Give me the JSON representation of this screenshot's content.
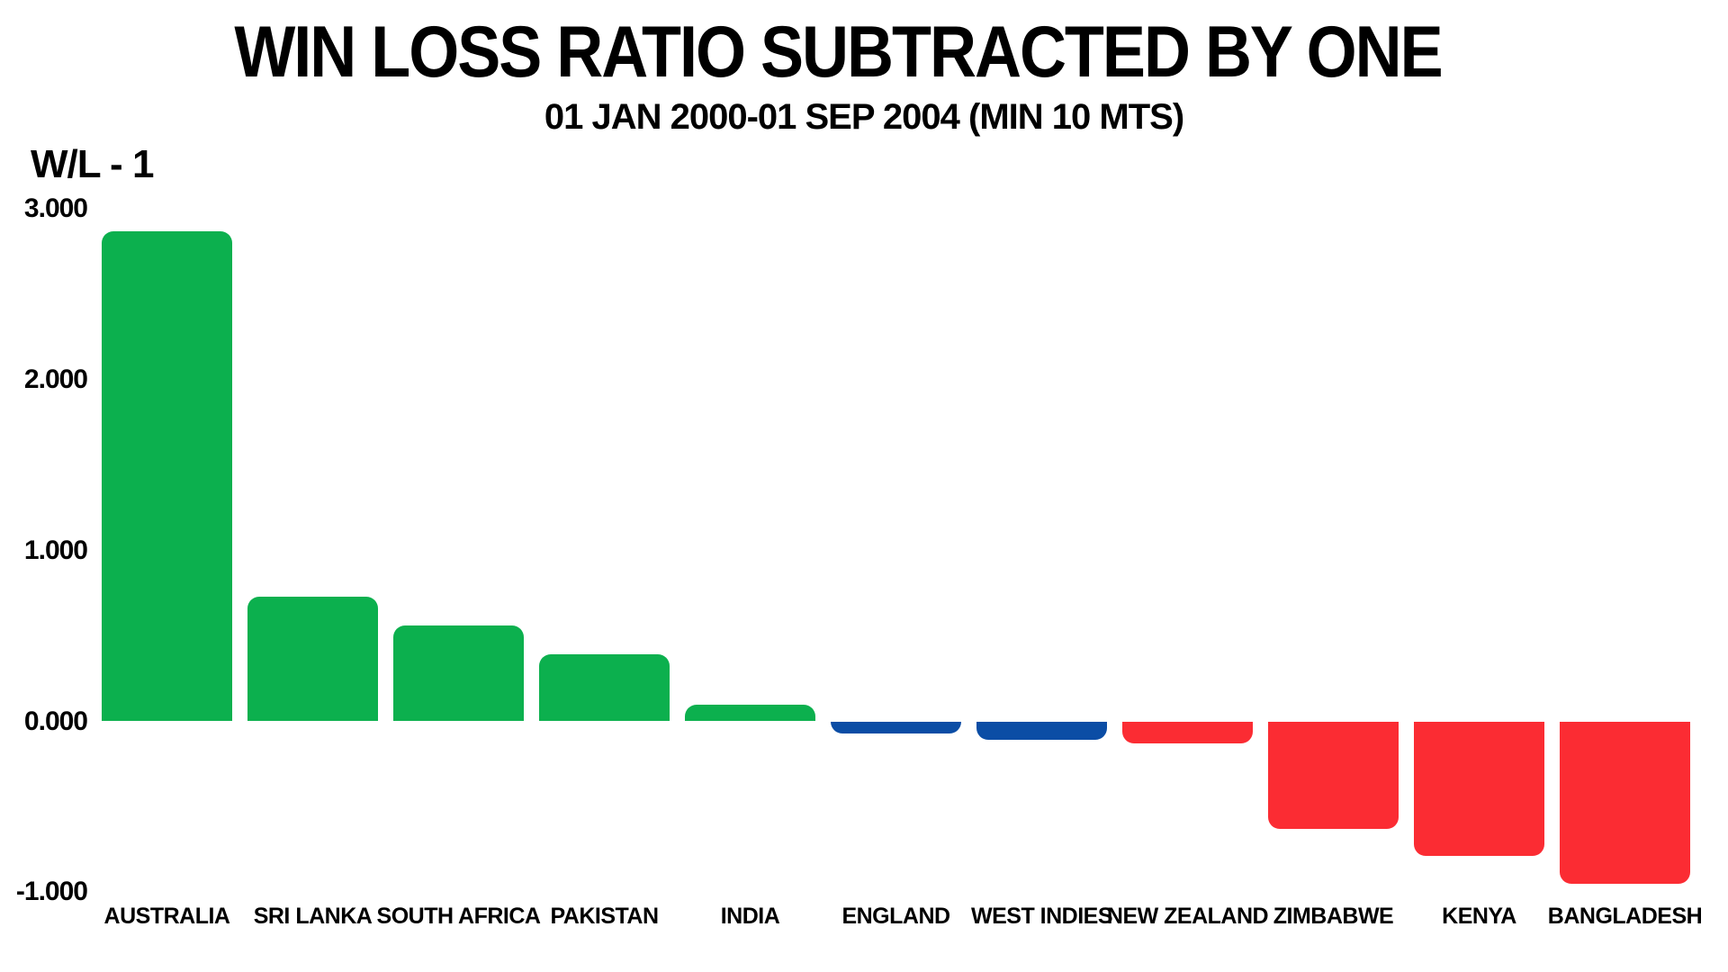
{
  "chart_data": {
    "type": "bar",
    "title": "WIN LOSS RATIO SUBTRACTED BY ONE",
    "subtitle": "01 JAN 2000-01 SEP 2004 (MIN 10 MTS)",
    "ylabel": "W/L - 1",
    "xlabel": "",
    "ylim": [
      -1.0,
      3.0
    ],
    "yticks": [
      3.0,
      2.0,
      1.0,
      0.0,
      -1.0
    ],
    "ytick_labels": [
      "3.000",
      "2.000",
      "1.000",
      "0.000",
      "-1.000"
    ],
    "grid": false,
    "legend": false,
    "categories": [
      "AUSTRALIA",
      "SRI LANKA",
      "SOUTH AFRICA",
      "PAKISTAN",
      "INDIA",
      "ENGLAND",
      "WEST INDIES",
      "NEW ZEALAND",
      "ZIMBABWE",
      "KENYA",
      "BANGLADESH"
    ],
    "values": [
      2.87,
      0.73,
      0.56,
      0.39,
      0.1,
      -0.07,
      -0.11,
      -0.13,
      -0.63,
      -0.79,
      -0.95
    ],
    "bar_colors": [
      "#0cb04e",
      "#0cb04e",
      "#0cb04e",
      "#0cb04e",
      "#0cb04e",
      "#0b4da5",
      "#0b4da5",
      "#fb2c33",
      "#fb2c33",
      "#fb2c33",
      "#fb2c33"
    ],
    "colors": {
      "green": "#0cb04e",
      "blue": "#0b4da5",
      "red": "#fb2c33",
      "text": "#000000",
      "background": "#ffffff"
    }
  }
}
